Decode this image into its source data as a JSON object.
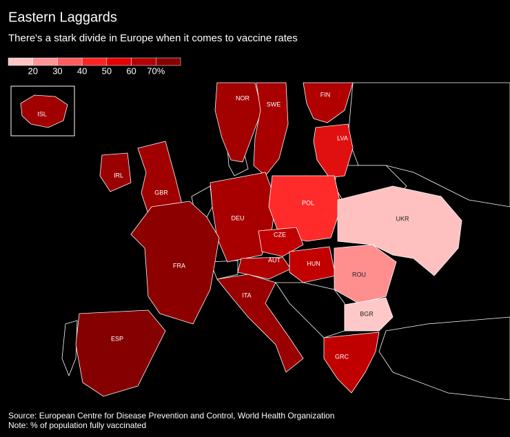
{
  "title": "Eastern Laggards",
  "subtitle": "There's a stark divide in Europe when it comes to vaccine rates",
  "legend": {
    "colors": [
      "#ffc4c4",
      "#ff9494",
      "#ff5c5c",
      "#ff2424",
      "#e60000",
      "#b40000",
      "#8a0000"
    ],
    "ticks": [
      20,
      30,
      40,
      50,
      60,
      {
        "value": 70,
        "label": "70%"
      }
    ]
  },
  "regions": [
    {
      "label": "ISL",
      "color": "#a00000"
    },
    {
      "label": "NOR",
      "color": "#a30000"
    },
    {
      "label": "SWE",
      "color": "#a80000"
    },
    {
      "label": "FIN",
      "color": "#b00000"
    },
    {
      "label": "LVA",
      "color": "#e01010"
    },
    {
      "label": "IRL",
      "color": "#9a0000"
    },
    {
      "label": "GBR",
      "color": "#a00000"
    },
    {
      "label": "DEU",
      "color": "#a80000"
    },
    {
      "label": "POL",
      "color": "#ff2a2a"
    },
    {
      "label": "CZE",
      "color": "#c00000"
    },
    {
      "label": "FRA",
      "color": "#8c0000"
    },
    {
      "label": "AUT",
      "color": "#b00000"
    },
    {
      "label": "HUN",
      "color": "#c20000"
    },
    {
      "label": "UKR",
      "color": "#ffc0c0"
    },
    {
      "label": "ROU",
      "color": "#ff8f8f"
    },
    {
      "label": "BGR",
      "color": "#ffc8c8"
    },
    {
      "label": "ITA",
      "color": "#9a0000"
    },
    {
      "label": "ESP",
      "color": "#850000"
    },
    {
      "label": "GRC",
      "color": "#c00000"
    }
  ],
  "source": "Source: European Centre for Disease Prevention and Control, World Health Organization",
  "note": "Note: % of population fully vaccinated"
}
